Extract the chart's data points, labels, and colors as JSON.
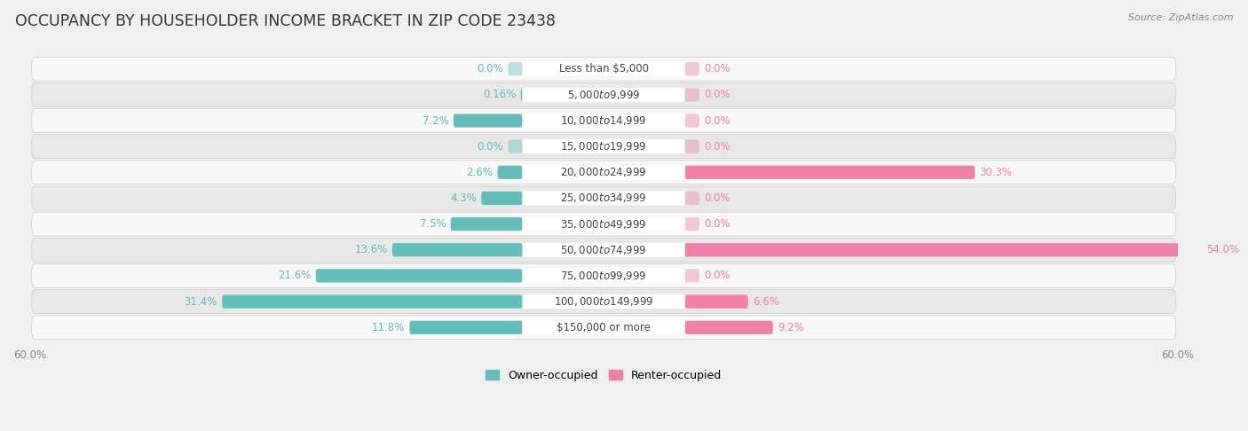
{
  "title": "OCCUPANCY BY HOUSEHOLDER INCOME BRACKET IN ZIP CODE 23438",
  "source": "Source: ZipAtlas.com",
  "categories": [
    "Less than $5,000",
    "$5,000 to $9,999",
    "$10,000 to $14,999",
    "$15,000 to $19,999",
    "$20,000 to $24,999",
    "$25,000 to $34,999",
    "$35,000 to $49,999",
    "$50,000 to $74,999",
    "$75,000 to $99,999",
    "$100,000 to $149,999",
    "$150,000 or more"
  ],
  "owner_values": [
    0.0,
    0.16,
    7.2,
    0.0,
    2.6,
    4.3,
    7.5,
    13.6,
    21.6,
    31.4,
    11.8
  ],
  "renter_values": [
    0.0,
    0.0,
    0.0,
    0.0,
    30.3,
    0.0,
    0.0,
    54.0,
    0.0,
    6.6,
    9.2
  ],
  "owner_color": "#62bebb",
  "renter_color": "#f080a8",
  "owner_label_color": "#62bebb",
  "renter_label_color": "#f080a8",
  "axis_max": 60.0,
  "bg_color": "#efefef",
  "row_color_light": "#f7f7f7",
  "row_color_dark": "#e8e8e8",
  "bar_height": 0.52,
  "title_fontsize": 12.5,
  "label_fontsize": 8.5,
  "category_fontsize": 8.5,
  "legend_fontsize": 9,
  "source_fontsize": 8
}
